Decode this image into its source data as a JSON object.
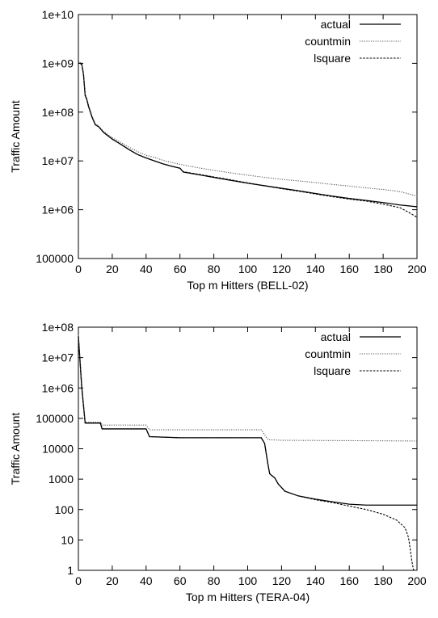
{
  "chart_data": [
    {
      "type": "line",
      "xlabel": "Top m Hitters (BELL-02)",
      "ylabel": "Traffic Amount",
      "xlim": [
        0,
        200
      ],
      "ylim": [
        100000,
        10000000000
      ],
      "yscale": "log",
      "legend_position": "top-right",
      "grid": false,
      "x_ticks": [
        "0",
        "20",
        "40",
        "60",
        "80",
        "100",
        "120",
        "140",
        "160",
        "180",
        "200"
      ],
      "y_ticks": [
        "100000",
        "1e+06",
        "1e+07",
        "1e+08",
        "1e+09",
        "1e+10"
      ],
      "series": [
        {
          "name": "actual",
          "style": "solid",
          "points": [
            [
              0,
              1000000000
            ],
            [
              1,
              1000000000
            ],
            [
              2,
              950000000
            ],
            [
              3,
              600000000
            ],
            [
              4,
              220000000
            ],
            [
              5,
              180000000
            ],
            [
              6,
              130000000
            ],
            [
              8,
              80000000
            ],
            [
              10,
              55000000
            ],
            [
              12,
              50000000
            ],
            [
              15,
              38000000
            ],
            [
              20,
              28000000
            ],
            [
              25,
              22000000
            ],
            [
              30,
              17000000
            ],
            [
              35,
              13500000
            ],
            [
              40,
              11500000
            ],
            [
              45,
              10000000
            ],
            [
              50,
              8700000
            ],
            [
              55,
              7800000
            ],
            [
              60,
              7100000
            ],
            [
              62,
              5900000
            ],
            [
              70,
              5300000
            ],
            [
              80,
              4600000
            ],
            [
              90,
              4000000
            ],
            [
              100,
              3500000
            ],
            [
              110,
              3100000
            ],
            [
              120,
              2750000
            ],
            [
              130,
              2450000
            ],
            [
              140,
              2150000
            ],
            [
              150,
              1900000
            ],
            [
              160,
              1700000
            ],
            [
              170,
              1550000
            ],
            [
              180,
              1400000
            ],
            [
              190,
              1250000
            ],
            [
              200,
              1150000
            ]
          ]
        },
        {
          "name": "countmin",
          "style": "dotted",
          "points": [
            [
              0,
              1100000000
            ],
            [
              1,
              1050000000
            ],
            [
              2,
              1000000000
            ],
            [
              3,
              650000000
            ],
            [
              4,
              240000000
            ],
            [
              5,
              190000000
            ],
            [
              6,
              140000000
            ],
            [
              8,
              85000000
            ],
            [
              10,
              58000000
            ],
            [
              12,
              52000000
            ],
            [
              15,
              40000000
            ],
            [
              20,
              30000000
            ],
            [
              25,
              24000000
            ],
            [
              30,
              19000000
            ],
            [
              35,
              15500000
            ],
            [
              40,
              13000000
            ],
            [
              45,
              11800000
            ],
            [
              50,
              10300000
            ],
            [
              55,
              9300000
            ],
            [
              60,
              8500000
            ],
            [
              65,
              7900000
            ],
            [
              70,
              7300000
            ],
            [
              80,
              6400000
            ],
            [
              90,
              5700000
            ],
            [
              100,
              5100000
            ],
            [
              110,
              4600000
            ],
            [
              120,
              4200000
            ],
            [
              130,
              3900000
            ],
            [
              140,
              3600000
            ],
            [
              150,
              3300000
            ],
            [
              160,
              3050000
            ],
            [
              170,
              2800000
            ],
            [
              180,
              2600000
            ],
            [
              190,
              2350000
            ],
            [
              200,
              1900000
            ]
          ]
        },
        {
          "name": "lsquare",
          "style": "dashed",
          "points": [
            [
              0,
              1000000000
            ],
            [
              1,
              1000000000
            ],
            [
              2,
              950000000
            ],
            [
              3,
              600000000
            ],
            [
              4,
              220000000
            ],
            [
              5,
              180000000
            ],
            [
              6,
              130000000
            ],
            [
              8,
              80000000
            ],
            [
              10,
              55000000
            ],
            [
              12,
              50000000
            ],
            [
              15,
              38000000
            ],
            [
              20,
              28000000
            ],
            [
              25,
              22000000
            ],
            [
              30,
              17000000
            ],
            [
              35,
              13500000
            ],
            [
              40,
              11500000
            ],
            [
              45,
              10000000
            ],
            [
              50,
              8700000
            ],
            [
              55,
              7800000
            ],
            [
              60,
              7100000
            ],
            [
              62,
              6000000
            ],
            [
              70,
              5400000
            ],
            [
              80,
              4700000
            ],
            [
              90,
              4100000
            ],
            [
              100,
              3550000
            ],
            [
              110,
              3100000
            ],
            [
              120,
              2700000
            ],
            [
              130,
              2400000
            ],
            [
              140,
              2100000
            ],
            [
              150,
              1850000
            ],
            [
              160,
              1650000
            ],
            [
              170,
              1500000
            ],
            [
              180,
              1300000
            ],
            [
              190,
              1100000
            ],
            [
              196,
              850000
            ],
            [
              200,
              700000
            ]
          ]
        }
      ]
    },
    {
      "type": "line",
      "xlabel": "Top m Hitters (TERA-04)",
      "ylabel": "Traffic Amount",
      "xlim": [
        0,
        200
      ],
      "ylim": [
        1,
        100000000
      ],
      "yscale": "log",
      "legend_position": "top-right",
      "grid": false,
      "x_ticks": [
        "0",
        "20",
        "40",
        "60",
        "80",
        "100",
        "120",
        "140",
        "160",
        "180",
        "200"
      ],
      "y_ticks": [
        "1",
        "10",
        "100",
        "1000",
        "10000",
        "100000",
        "1e+06",
        "1e+07",
        "1e+08"
      ],
      "series": [
        {
          "name": "actual",
          "style": "solid",
          "points": [
            [
              0,
              50000000
            ],
            [
              2,
              1000000
            ],
            [
              4,
              70000
            ],
            [
              13,
              70000
            ],
            [
              14,
              45000
            ],
            [
              40,
              45000
            ],
            [
              42,
              25000
            ],
            [
              60,
              23000
            ],
            [
              108,
              23000
            ],
            [
              110,
              15000
            ],
            [
              112,
              3000
            ],
            [
              113,
              1500
            ],
            [
              116,
              1100
            ],
            [
              118,
              700
            ],
            [
              122,
              400
            ],
            [
              130,
              280
            ],
            [
              140,
              220
            ],
            [
              150,
              180
            ],
            [
              160,
              150
            ],
            [
              170,
              140
            ],
            [
              200,
              140
            ]
          ]
        },
        {
          "name": "countmin",
          "style": "dotted",
          "points": [
            [
              0,
              55000000
            ],
            [
              2,
              1500000
            ],
            [
              4,
              75000
            ],
            [
              13,
              75000
            ],
            [
              14,
              60000
            ],
            [
              40,
              60000
            ],
            [
              42,
              42000
            ],
            [
              108,
              42000
            ],
            [
              112,
              20000
            ],
            [
              120,
              19000
            ],
            [
              200,
              18000
            ]
          ]
        },
        {
          "name": "lsquare",
          "style": "dashed",
          "points": [
            [
              0,
              50000000
            ],
            [
              2,
              1000000
            ],
            [
              4,
              70000
            ],
            [
              13,
              70000
            ],
            [
              14,
              45000
            ],
            [
              40,
              45000
            ],
            [
              42,
              25000
            ],
            [
              60,
              23000
            ],
            [
              108,
              23000
            ],
            [
              110,
              15000
            ],
            [
              112,
              3000
            ],
            [
              113,
              1500
            ],
            [
              116,
              1100
            ],
            [
              118,
              700
            ],
            [
              122,
              400
            ],
            [
              130,
              280
            ],
            [
              140,
              210
            ],
            [
              150,
              170
            ],
            [
              160,
              130
            ],
            [
              170,
              100
            ],
            [
              180,
              70
            ],
            [
              188,
              45
            ],
            [
              193,
              25
            ],
            [
              195,
              12
            ],
            [
              196,
              5
            ],
            [
              197,
              2
            ],
            [
              198,
              1
            ]
          ]
        }
      ]
    }
  ]
}
